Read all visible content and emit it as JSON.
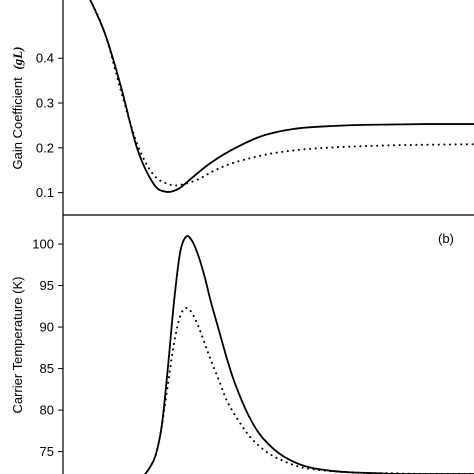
{
  "chart_data": [
    {
      "type": "line",
      "ylabel": "Gain Coefficient",
      "ylabel_symbol": "(gL)",
      "yticks": [
        0.1,
        0.2,
        0.3,
        0.4
      ],
      "ylim": [
        0.05,
        0.53
      ],
      "xlim": [
        0,
        1
      ],
      "series": [
        {
          "style": "solid",
          "x": [
            0.0,
            0.05,
            0.1,
            0.14,
            0.18,
            0.22,
            0.25,
            0.28,
            0.31,
            0.35,
            0.4,
            0.48,
            0.56,
            0.64,
            0.72,
            0.8,
            0.88,
            0.95,
            1.0
          ],
          "y": [
            0.64,
            0.56,
            0.46,
            0.34,
            0.2,
            0.12,
            0.102,
            0.108,
            0.13,
            0.16,
            0.19,
            0.225,
            0.242,
            0.248,
            0.251,
            0.252,
            0.253,
            0.253,
            0.253
          ]
        },
        {
          "style": "dotted",
          "x": [
            0.0,
            0.05,
            0.1,
            0.14,
            0.18,
            0.22,
            0.26,
            0.29,
            0.33,
            0.37,
            0.42,
            0.5,
            0.58,
            0.66,
            0.74,
            0.82,
            0.9,
            1.0
          ],
          "y": [
            0.64,
            0.56,
            0.46,
            0.33,
            0.21,
            0.14,
            0.118,
            0.118,
            0.13,
            0.15,
            0.168,
            0.186,
            0.196,
            0.201,
            0.204,
            0.206,
            0.207,
            0.208
          ]
        }
      ]
    },
    {
      "type": "line",
      "ylabel": "Carrier Temperature (K)",
      "panel_label": "(b)",
      "yticks": [
        75,
        80,
        85,
        90,
        95,
        100
      ],
      "ylim": [
        72.3,
        103.5
      ],
      "xlim": [
        0,
        1
      ],
      "series": [
        {
          "style": "solid",
          "x": [
            0.2,
            0.21,
            0.225,
            0.24,
            0.255,
            0.27,
            0.285,
            0.3,
            0.315,
            0.33,
            0.345,
            0.36,
            0.38,
            0.4,
            0.42,
            0.45,
            0.48,
            0.52,
            0.56,
            0.6,
            0.65,
            0.7,
            0.76,
            0.82,
            0.9,
            1.0
          ],
          "y": [
            72.3,
            73.0,
            74.5,
            78,
            85,
            93,
            99,
            100.9,
            100.3,
            98.5,
            96,
            93,
            89.5,
            86,
            83,
            79.5,
            77,
            75,
            73.8,
            73.1,
            72.7,
            72.5,
            72.4,
            72.3,
            72.3,
            72.3
          ]
        },
        {
          "style": "dotted",
          "x": [
            0.2,
            0.21,
            0.225,
            0.24,
            0.255,
            0.27,
            0.285,
            0.3,
            0.315,
            0.33,
            0.345,
            0.36,
            0.38,
            0.4,
            0.43,
            0.46,
            0.5,
            0.54,
            0.58,
            0.62,
            0.66,
            0.7,
            0.75,
            0.8,
            0.88,
            1.0
          ],
          "y": [
            72.3,
            73.0,
            74.5,
            78,
            83,
            88,
            91.3,
            92.3,
            91.6,
            90,
            88,
            86,
            83.5,
            81,
            78.5,
            76.5,
            74.8,
            73.8,
            73.1,
            72.8,
            72.6,
            72.5,
            72.4,
            72.4,
            72.3,
            72.3
          ]
        }
      ]
    }
  ]
}
